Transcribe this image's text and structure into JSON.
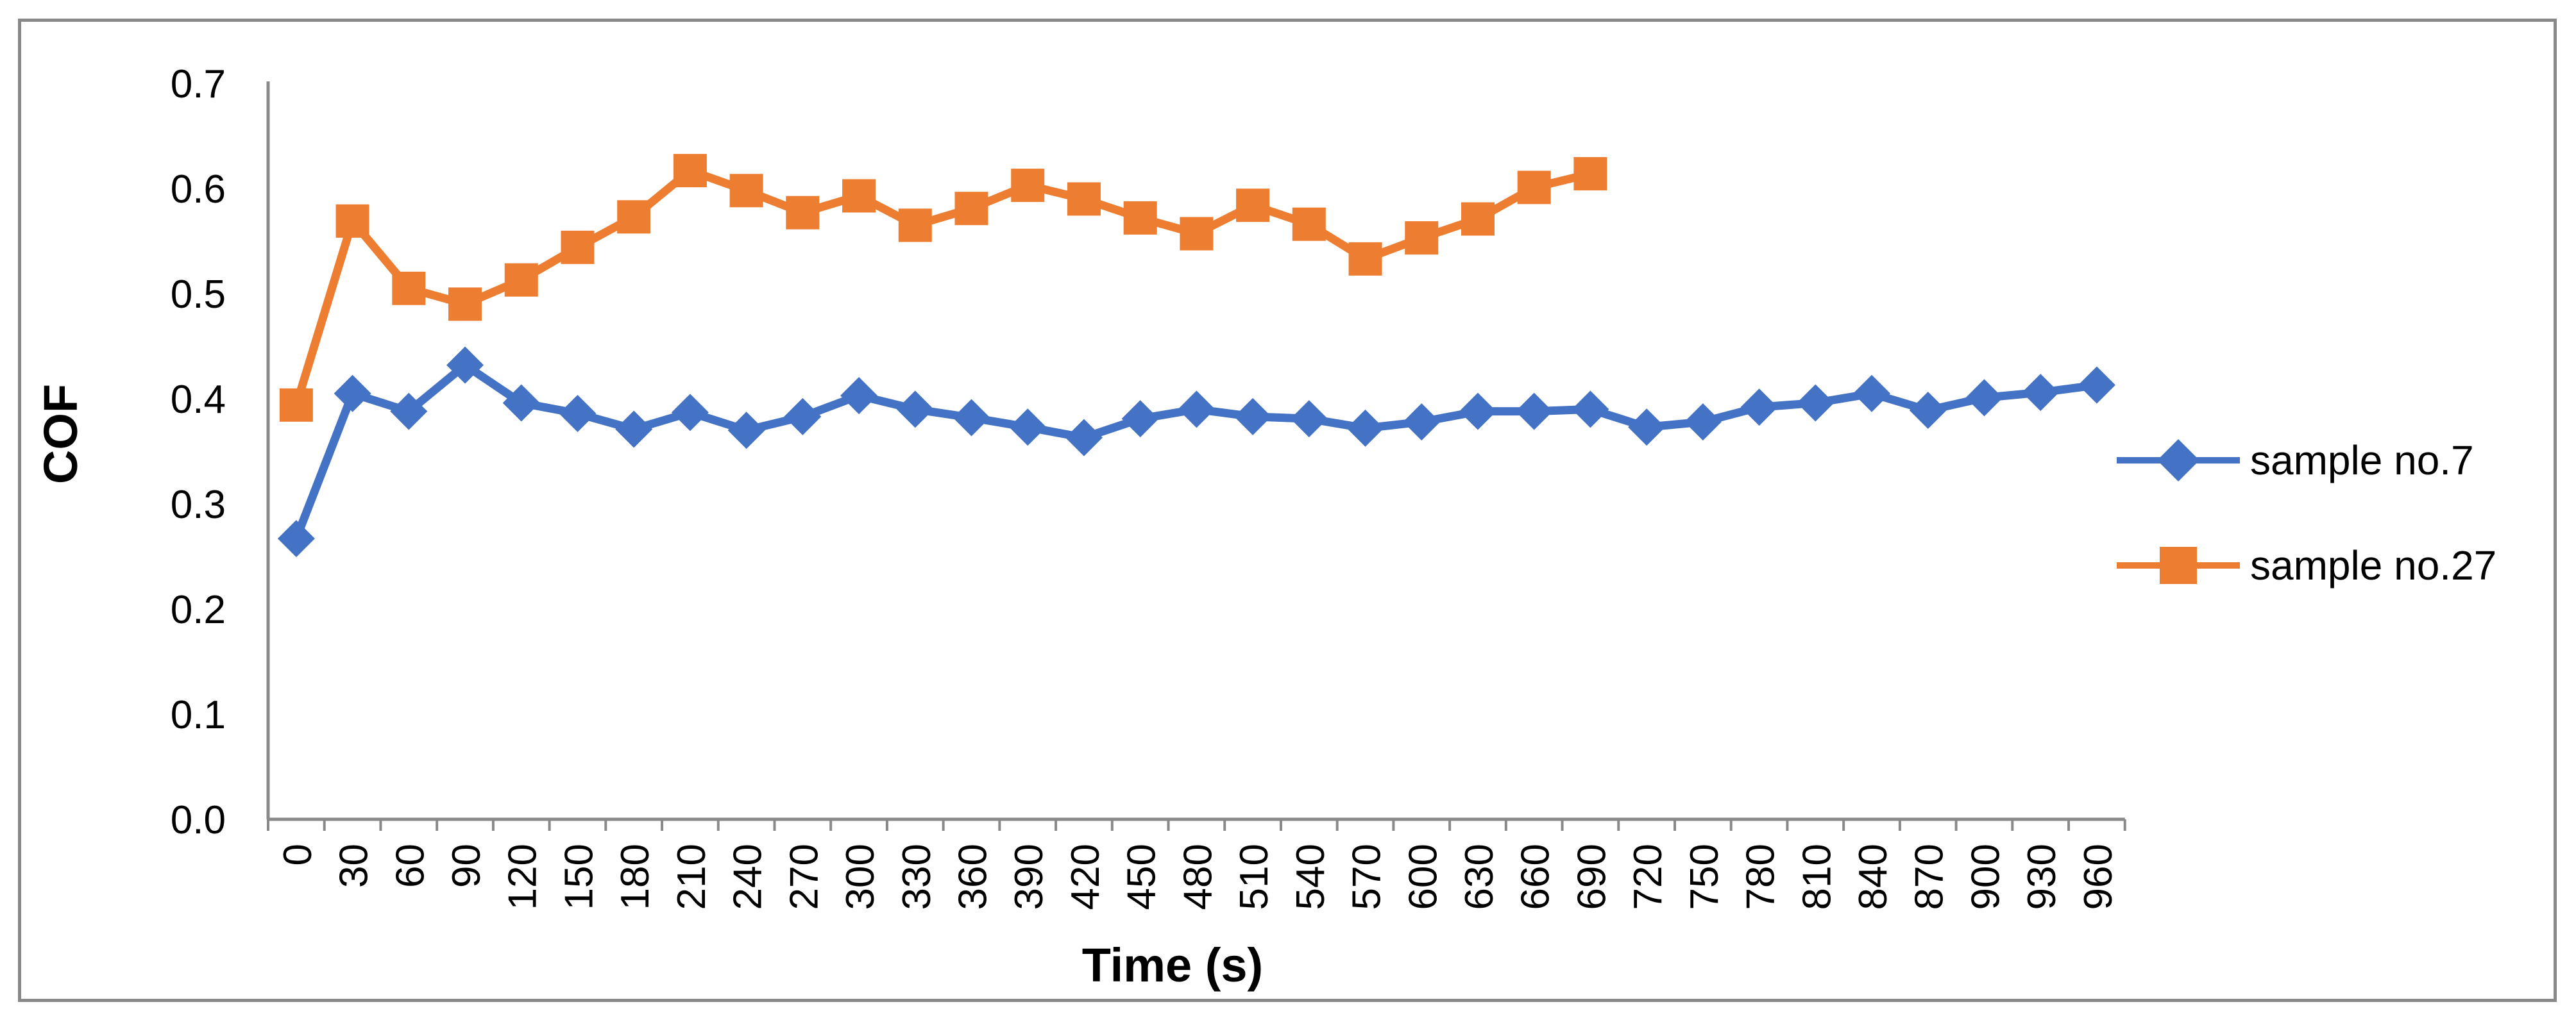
{
  "page": {
    "background": "#ffffff",
    "frame_border_color": "#898989"
  },
  "chart_data": {
    "type": "line",
    "title": "",
    "xlabel": "Time (s)",
    "ylabel": "COF",
    "x_categories": [
      0,
      30,
      60,
      90,
      120,
      150,
      180,
      210,
      240,
      270,
      300,
      330,
      360,
      390,
      420,
      450,
      480,
      510,
      540,
      570,
      600,
      630,
      660,
      690,
      720,
      750,
      780,
      810,
      840,
      870,
      900,
      930,
      960
    ],
    "y_ticks": [
      "0.0",
      "0.1",
      "0.2",
      "0.3",
      "0.4",
      "0.5",
      "0.6",
      "0.7"
    ],
    "ylim": [
      0.0,
      0.7
    ],
    "grid": false,
    "legend_position": "middle-right",
    "axis_color": "#898989",
    "tick_label_color": "#000000",
    "series": [
      {
        "name": "sample no.7",
        "marker": "diamond",
        "color": "#4472C4",
        "values": [
          0.267,
          0.405,
          0.388,
          0.432,
          0.396,
          0.386,
          0.371,
          0.387,
          0.37,
          0.383,
          0.403,
          0.39,
          0.382,
          0.373,
          0.363,
          0.381,
          0.39,
          0.383,
          0.381,
          0.372,
          0.378,
          0.388,
          0.388,
          0.39,
          0.373,
          0.378,
          0.392,
          0.396,
          0.405,
          0.389,
          0.401,
          0.406,
          0.413
        ]
      },
      {
        "name": "sample no.27",
        "marker": "square",
        "color": "#ED7D31",
        "values": [
          0.394,
          0.569,
          0.505,
          0.49,
          0.513,
          0.544,
          0.573,
          0.617,
          0.598,
          0.577,
          0.593,
          0.565,
          0.581,
          0.603,
          0.59,
          0.572,
          0.557,
          0.584,
          0.566,
          0.533,
          0.553,
          0.571,
          0.601,
          0.614
        ]
      }
    ]
  }
}
